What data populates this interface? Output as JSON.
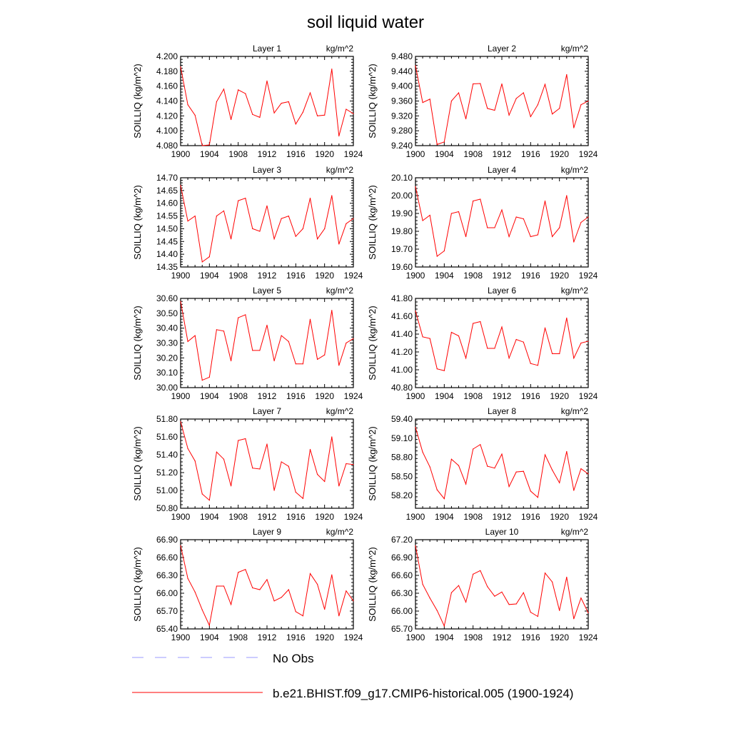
{
  "title": "soil liquid water",
  "chart_data": {
    "type": "line",
    "title": "soil liquid water",
    "panels": [
      {
        "label": "Layer 1",
        "units": "kg/m^2",
        "ylabel": "SOILLIQ  (kg/m^2)",
        "x": [
          1900,
          1901,
          1902,
          1903,
          1904,
          1905,
          1906,
          1907,
          1908,
          1909,
          1910,
          1911,
          1912,
          1913,
          1914,
          1915,
          1916,
          1917,
          1918,
          1919,
          1920,
          1921,
          1922,
          1923,
          1924
        ],
        "values": [
          4.186,
          4.135,
          4.121,
          4.08,
          4.081,
          4.139,
          4.156,
          4.115,
          4.155,
          4.15,
          4.122,
          4.118,
          4.167,
          4.124,
          4.137,
          4.139,
          4.109,
          4.125,
          4.151,
          4.12,
          4.121,
          4.183,
          4.093,
          4.129,
          4.123
        ],
        "ylim": [
          4.08,
          4.2
        ],
        "yticks": [
          "4.080",
          "4.100",
          "4.120",
          "4.140",
          "4.160",
          "4.180",
          "4.200"
        ],
        "xticks": [
          "1900",
          "1904",
          "1908",
          "1912",
          "1916",
          "1920",
          "1924"
        ]
      },
      {
        "label": "Layer 2",
        "units": "kg/m^2",
        "ylabel": "SOILLIQ  (kg/m^2)",
        "x": [
          1900,
          1901,
          1902,
          1903,
          1904,
          1905,
          1906,
          1907,
          1908,
          1909,
          1910,
          1911,
          1912,
          1913,
          1914,
          1915,
          1916,
          1917,
          1918,
          1919,
          1920,
          1921,
          1922,
          1923,
          1924
        ],
        "values": [
          9.455,
          9.356,
          9.365,
          9.243,
          9.25,
          9.36,
          9.382,
          9.312,
          9.406,
          9.407,
          9.34,
          9.335,
          9.406,
          9.322,
          9.367,
          9.382,
          9.318,
          9.35,
          9.405,
          9.325,
          9.34,
          9.431,
          9.288,
          9.35,
          9.36
        ],
        "ylim": [
          9.24,
          9.48
        ],
        "yticks": [
          "9.240",
          "9.280",
          "9.320",
          "9.360",
          "9.400",
          "9.440",
          "9.480"
        ],
        "xticks": [
          "1900",
          "1904",
          "1908",
          "1912",
          "1916",
          "1920",
          "1924"
        ]
      },
      {
        "label": "Layer 3",
        "units": "kg/m^2",
        "ylabel": "SOILLIQ  (kg/m^2)",
        "x": [
          1900,
          1901,
          1902,
          1903,
          1904,
          1905,
          1906,
          1907,
          1908,
          1909,
          1910,
          1911,
          1912,
          1913,
          1914,
          1915,
          1916,
          1917,
          1918,
          1919,
          1920,
          1921,
          1922,
          1923,
          1924
        ],
        "values": [
          14.67,
          14.53,
          14.55,
          14.37,
          14.39,
          14.55,
          14.57,
          14.46,
          14.61,
          14.62,
          14.5,
          14.49,
          14.59,
          14.46,
          14.54,
          14.55,
          14.47,
          14.5,
          14.62,
          14.46,
          14.5,
          14.63,
          14.44,
          14.52,
          14.54
        ],
        "ylim": [
          14.35,
          14.7
        ],
        "yticks": [
          "14.35",
          "14.40",
          "14.45",
          "14.50",
          "14.55",
          "14.60",
          "14.65",
          "14.70"
        ],
        "xticks": [
          "1900",
          "1904",
          "1908",
          "1912",
          "1916",
          "1920",
          "1924"
        ]
      },
      {
        "label": "Layer 4",
        "units": "kg/m^2",
        "ylabel": "SOILLIQ  (kg/m^2)",
        "x": [
          1900,
          1901,
          1902,
          1903,
          1904,
          1905,
          1906,
          1907,
          1908,
          1909,
          1910,
          1911,
          1912,
          1913,
          1914,
          1915,
          1916,
          1917,
          1918,
          1919,
          1920,
          1921,
          1922,
          1923,
          1924
        ],
        "values": [
          20.05,
          19.86,
          19.89,
          19.66,
          19.69,
          19.9,
          19.91,
          19.77,
          19.97,
          19.98,
          19.82,
          19.82,
          19.92,
          19.77,
          19.88,
          19.87,
          19.77,
          19.78,
          19.97,
          19.77,
          19.82,
          20.0,
          19.74,
          19.85,
          19.88
        ],
        "ylim": [
          19.6,
          20.1
        ],
        "yticks": [
          "19.60",
          "19.70",
          "19.80",
          "19.90",
          "20.00",
          "20.10"
        ],
        "xticks": [
          "1900",
          "1904",
          "1908",
          "1912",
          "1916",
          "1920",
          "1924"
        ]
      },
      {
        "label": "Layer 5",
        "units": "kg/m^2",
        "ylabel": "SOILLIQ  (kg/m^2)",
        "x": [
          1900,
          1901,
          1902,
          1903,
          1904,
          1905,
          1906,
          1907,
          1908,
          1909,
          1910,
          1911,
          1912,
          1913,
          1914,
          1915,
          1916,
          1917,
          1918,
          1919,
          1920,
          1921,
          1922,
          1923,
          1924
        ],
        "values": [
          30.58,
          30.31,
          30.35,
          30.05,
          30.07,
          30.39,
          30.38,
          30.18,
          30.47,
          30.49,
          30.25,
          30.25,
          30.42,
          30.18,
          30.35,
          30.31,
          30.16,
          30.16,
          30.46,
          30.19,
          30.22,
          30.52,
          30.15,
          30.3,
          30.33
        ],
        "ylim": [
          30.0,
          30.6
        ],
        "yticks": [
          "30.00",
          "30.10",
          "30.20",
          "30.30",
          "30.40",
          "30.50",
          "30.60"
        ],
        "xticks": [
          "1900",
          "1904",
          "1908",
          "1912",
          "1916",
          "1920",
          "1924"
        ]
      },
      {
        "label": "Layer 6",
        "units": "kg/m^2",
        "ylabel": "SOILLIQ  (kg/m^2)",
        "x": [
          1900,
          1901,
          1902,
          1903,
          1904,
          1905,
          1906,
          1907,
          1908,
          1909,
          1910,
          1911,
          1912,
          1913,
          1914,
          1915,
          1916,
          1917,
          1918,
          1919,
          1920,
          1921,
          1922,
          1923,
          1924
        ],
        "values": [
          41.66,
          41.37,
          41.35,
          41.01,
          40.99,
          41.42,
          41.38,
          41.13,
          41.52,
          41.54,
          41.24,
          41.24,
          41.48,
          41.13,
          41.34,
          41.31,
          41.07,
          41.05,
          41.47,
          41.18,
          41.18,
          41.58,
          41.13,
          41.3,
          41.32
        ],
        "ylim": [
          40.8,
          41.8
        ],
        "yticks": [
          "40.80",
          "41.00",
          "41.20",
          "41.40",
          "41.60",
          "41.80"
        ],
        "xticks": [
          "1900",
          "1904",
          "1908",
          "1912",
          "1916",
          "1920",
          "1924"
        ]
      },
      {
        "label": "Layer 7",
        "units": "kg/m^2",
        "ylabel": "SOILLIQ  (kg/m^2)",
        "x": [
          1900,
          1901,
          1902,
          1903,
          1904,
          1905,
          1906,
          1907,
          1908,
          1909,
          1910,
          1911,
          1912,
          1913,
          1914,
          1915,
          1916,
          1917,
          1918,
          1919,
          1920,
          1921,
          1922,
          1923,
          1924
        ],
        "values": [
          51.77,
          51.47,
          51.33,
          50.96,
          50.89,
          51.43,
          51.35,
          51.05,
          51.56,
          51.58,
          51.25,
          51.24,
          51.52,
          51.0,
          51.32,
          51.27,
          50.98,
          50.91,
          51.46,
          51.18,
          51.1,
          51.6,
          51.05,
          51.3,
          51.29
        ],
        "ylim": [
          50.8,
          51.8
        ],
        "yticks": [
          "50.80",
          "51.00",
          "51.20",
          "51.40",
          "51.60",
          "51.80"
        ],
        "xticks": [
          "1900",
          "1904",
          "1908",
          "1912",
          "1916",
          "1920",
          "1924"
        ]
      },
      {
        "label": "Layer 8",
        "units": "kg/m^2",
        "ylabel": "SOILLIQ  (kg/m^2)",
        "x": [
          1900,
          1901,
          1902,
          1903,
          1904,
          1905,
          1906,
          1907,
          1908,
          1909,
          1910,
          1911,
          1912,
          1913,
          1914,
          1915,
          1916,
          1917,
          1918,
          1919,
          1920,
          1921,
          1922,
          1923,
          1924
        ],
        "values": [
          59.27,
          58.88,
          58.65,
          58.29,
          58.15,
          58.77,
          58.67,
          58.38,
          58.93,
          59.0,
          58.66,
          58.63,
          58.85,
          58.34,
          58.57,
          58.58,
          58.27,
          58.17,
          58.84,
          58.6,
          58.4,
          58.89,
          58.28,
          58.62,
          58.54
        ],
        "ylim": [
          58.0,
          59.4
        ],
        "yticks": [
          "58.20",
          "58.50",
          "58.80",
          "59.10",
          "59.40"
        ],
        "xticks": [
          "1900",
          "1904",
          "1908",
          "1912",
          "1916",
          "1920",
          "1924"
        ]
      },
      {
        "label": "Layer 9",
        "units": "kg/m^2",
        "ylabel": "SOILLIQ  (kg/m^2)",
        "x": [
          1900,
          1901,
          1902,
          1903,
          1904,
          1905,
          1906,
          1907,
          1908,
          1909,
          1910,
          1911,
          1912,
          1913,
          1914,
          1915,
          1916,
          1917,
          1918,
          1919,
          1920,
          1921,
          1922,
          1923,
          1924
        ],
        "values": [
          66.8,
          66.25,
          66.02,
          65.72,
          65.46,
          66.12,
          66.12,
          65.81,
          66.35,
          66.4,
          66.09,
          66.06,
          66.23,
          65.87,
          65.93,
          66.06,
          65.69,
          65.62,
          66.33,
          66.15,
          65.73,
          66.31,
          65.62,
          66.04,
          65.87
        ],
        "ylim": [
          65.4,
          66.9
        ],
        "yticks": [
          "65.40",
          "65.70",
          "66.00",
          "66.30",
          "66.60",
          "66.90"
        ],
        "xticks": [
          "1900",
          "1904",
          "1908",
          "1912",
          "1916",
          "1920",
          "1924"
        ]
      },
      {
        "label": "Layer 10",
        "units": "kg/m^2",
        "ylabel": "SOILLIQ  (kg/m^2)",
        "x": [
          1900,
          1901,
          1902,
          1903,
          1904,
          1905,
          1906,
          1907,
          1908,
          1909,
          1910,
          1911,
          1912,
          1913,
          1914,
          1915,
          1916,
          1917,
          1918,
          1919,
          1920,
          1921,
          1922,
          1923,
          1924
        ],
        "values": [
          67.1,
          66.45,
          66.22,
          66.01,
          65.75,
          66.31,
          66.43,
          66.15,
          66.62,
          66.68,
          66.41,
          66.25,
          66.32,
          66.11,
          66.12,
          66.31,
          65.98,
          65.91,
          66.64,
          66.49,
          66.01,
          66.57,
          65.87,
          66.22,
          65.97
        ],
        "ylim": [
          65.7,
          67.2
        ],
        "yticks": [
          "65.70",
          "66.00",
          "66.30",
          "66.60",
          "66.90",
          "67.20"
        ],
        "xticks": [
          "1900",
          "1904",
          "1908",
          "1912",
          "1916",
          "1920",
          "1924"
        ]
      }
    ],
    "legend": [
      {
        "name": "No Obs",
        "color": "#9999ff",
        "style": "dashed"
      },
      {
        "name": "b.e21.BHIST.f09_g17.CMIP6-historical.005 (1900-1924)",
        "color": "#ff0000",
        "style": "solid"
      }
    ],
    "line_color": "#ff0000"
  }
}
